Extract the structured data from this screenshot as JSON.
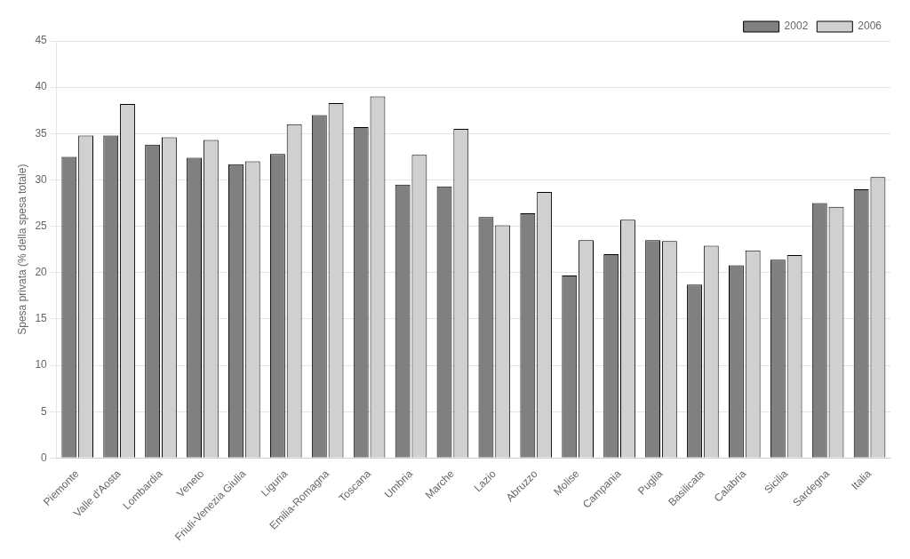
{
  "chart_data": {
    "type": "bar",
    "categories": [
      "Piemonte",
      "Valle d'Aosta",
      "Lombardia",
      "Veneto",
      "Friuli-Venezia Giulia",
      "Liguria",
      "Emilia-Romagna",
      "Toscana",
      "Umbria",
      "Marche",
      "Lazio",
      "Abruzzo",
      "Molise",
      "Campania",
      "Puglia",
      "Basilicata",
      "Calabria",
      "Sicilia",
      "Sardegna",
      "Italia"
    ],
    "series": [
      {
        "name": "2002",
        "color": "#808080",
        "values": [
          32.5,
          34.8,
          33.8,
          32.4,
          31.7,
          32.8,
          37.0,
          35.7,
          29.5,
          29.3,
          26.0,
          26.4,
          19.7,
          22.0,
          23.5,
          18.7,
          20.8,
          21.4,
          27.5,
          29.0
        ]
      },
      {
        "name": "2006",
        "color": "#d0d0d0",
        "values": [
          34.8,
          38.2,
          34.6,
          34.3,
          32.0,
          36.0,
          38.3,
          39.0,
          32.7,
          35.5,
          25.1,
          28.7,
          23.5,
          25.7,
          23.4,
          22.9,
          22.4,
          21.9,
          27.1,
          30.3
        ]
      }
    ],
    "ylabel": "Spesa privata (% della spesa totale)",
    "ylim": [
      0,
      45
    ],
    "yticks": [
      0,
      5,
      10,
      15,
      20,
      25,
      30,
      35,
      40,
      45
    ],
    "grid": true,
    "legend": "upper right"
  }
}
